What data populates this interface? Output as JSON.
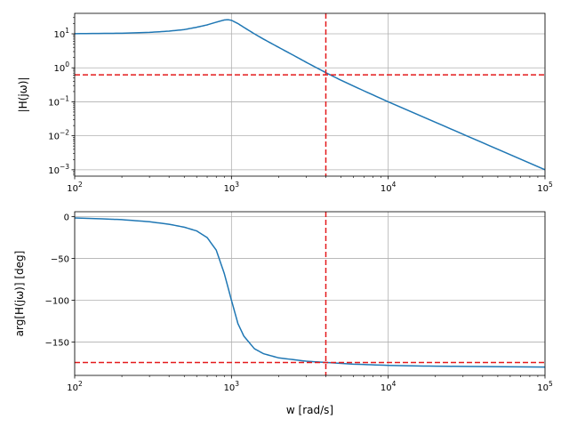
{
  "chart_data": [
    {
      "type": "line",
      "x_scale": "log",
      "y_scale": "log",
      "xlim": [
        100,
        100000
      ],
      "ylim": [
        0.00065,
        40
      ],
      "xlabel": "",
      "ylabel": "|H(jω)|",
      "grid": true,
      "x_ticks": [
        {
          "v": 100,
          "b": "10",
          "e": "2"
        },
        {
          "v": 1000,
          "b": "10",
          "e": "3"
        },
        {
          "v": 10000,
          "b": "10",
          "e": "4"
        },
        {
          "v": 100000,
          "b": "10",
          "e": "5"
        }
      ],
      "y_ticks": [
        {
          "v": 0.001,
          "b": "10",
          "e": "−3"
        },
        {
          "v": 0.01,
          "b": "10",
          "e": "−2"
        },
        {
          "v": 0.1,
          "b": "10",
          "e": "−1"
        },
        {
          "v": 1,
          "b": "10",
          "e": "0"
        },
        {
          "v": 10,
          "b": "10",
          "e": "1"
        }
      ],
      "series": [
        {
          "color": "#1f77b4",
          "points": [
            [
              100,
              10.1
            ],
            [
              200,
              10.4
            ],
            [
              300,
              11.0
            ],
            [
              400,
              12.0
            ],
            [
              500,
              13.3
            ],
            [
              600,
              15.6
            ],
            [
              700,
              18.3
            ],
            [
              800,
              22.0
            ],
            [
              900,
              25.5
            ],
            [
              950,
              26.0
            ],
            [
              1000,
              25.0
            ],
            [
              1100,
              20.0
            ],
            [
              1200,
              15.5
            ],
            [
              1400,
              10.0
            ],
            [
              1600,
              7.0
            ],
            [
              2000,
              4.0
            ],
            [
              2500,
              2.3
            ],
            [
              3000,
              1.45
            ],
            [
              4000,
              0.72
            ],
            [
              5000,
              0.43
            ],
            [
              7000,
              0.21
            ],
            [
              10000,
              0.1
            ],
            [
              20000,
              0.025
            ],
            [
              50000,
              0.004
            ],
            [
              100000,
              0.001
            ]
          ]
        }
      ],
      "reference_lines": [
        {
          "orientation": "horizontal",
          "value": 0.62,
          "color": "#e41a1c",
          "style": "dashed"
        },
        {
          "orientation": "vertical",
          "value": 4000,
          "color": "#e41a1c",
          "style": "dashed"
        }
      ]
    },
    {
      "type": "line",
      "x_scale": "log",
      "y_scale": "linear",
      "xlim": [
        100,
        100000
      ],
      "ylim": [
        -190,
        6
      ],
      "xlabel": "w [rad/s]",
      "ylabel": "arg[H(jω)] [deg]",
      "grid": true,
      "x_ticks": [
        {
          "v": 100,
          "b": "10",
          "e": "2"
        },
        {
          "v": 1000,
          "b": "10",
          "e": "3"
        },
        {
          "v": 10000,
          "b": "10",
          "e": "4"
        },
        {
          "v": 100000,
          "b": "10",
          "e": "5"
        }
      ],
      "y_ticks": [
        {
          "v": 0,
          "t": "0"
        },
        {
          "v": -50,
          "t": "−50"
        },
        {
          "v": -100,
          "t": "−100"
        },
        {
          "v": -150,
          "t": "−150"
        }
      ],
      "series": [
        {
          "color": "#1f77b4",
          "points": [
            [
              100,
              -1.5
            ],
            [
              150,
              -2.5
            ],
            [
              200,
              -3.5
            ],
            [
              300,
              -6
            ],
            [
              400,
              -9
            ],
            [
              500,
              -12.5
            ],
            [
              600,
              -17
            ],
            [
              700,
              -25
            ],
            [
              800,
              -40
            ],
            [
              900,
              -68
            ],
            [
              1000,
              -100
            ],
            [
              1100,
              -128
            ],
            [
              1200,
              -143
            ],
            [
              1400,
              -158
            ],
            [
              1600,
              -164
            ],
            [
              2000,
              -169
            ],
            [
              3000,
              -173
            ],
            [
              4000,
              -174.5
            ],
            [
              6000,
              -176.5
            ],
            [
              10000,
              -178
            ],
            [
              20000,
              -179
            ],
            [
              100000,
              -180
            ]
          ]
        }
      ],
      "reference_lines": [
        {
          "orientation": "horizontal",
          "value": -174.5,
          "color": "#e41a1c",
          "style": "dashed"
        },
        {
          "orientation": "vertical",
          "value": 4000,
          "color": "#e41a1c",
          "style": "dashed"
        }
      ]
    }
  ]
}
